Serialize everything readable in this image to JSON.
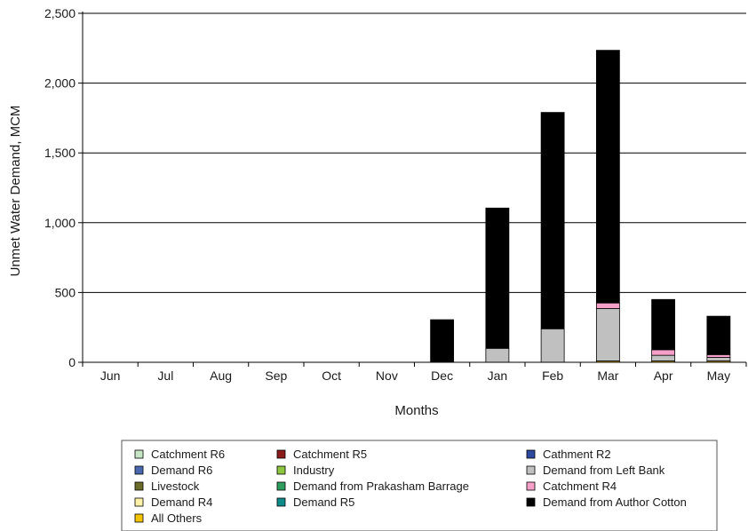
{
  "chart_data": {
    "type": "bar",
    "stacked": true,
    "title": "",
    "xlabel": "Months",
    "ylabel": "Unmet Water Demand, MCM",
    "ylim": [
      0,
      2500
    ],
    "yticks": [
      0,
      500,
      1000,
      1500,
      2000,
      2500
    ],
    "ytick_labels": [
      "0",
      "500",
      "1,000",
      "1,500",
      "2,000",
      "2,500"
    ],
    "grid": true,
    "legend_position": "bottom",
    "categories": [
      "Jun",
      "Jul",
      "Aug",
      "Sep",
      "Oct",
      "Nov",
      "Dec",
      "Jan",
      "Feb",
      "Mar",
      "Apr",
      "May"
    ],
    "series": [
      {
        "name": "Catchment R6",
        "color": "#c6e6c6",
        "values": [
          0,
          0,
          0,
          0,
          0,
          0,
          0,
          0,
          0,
          0,
          0,
          0
        ]
      },
      {
        "name": "Catchment R5",
        "color": "#8b1a1a",
        "values": [
          0,
          0,
          0,
          0,
          0,
          0,
          0,
          0,
          0,
          0,
          0,
          0
        ]
      },
      {
        "name": "Cathment R2",
        "color": "#2e4a9e",
        "values": [
          0,
          0,
          0,
          0,
          0,
          0,
          0,
          0,
          0,
          0,
          0,
          0
        ]
      },
      {
        "name": "Demand R6",
        "color": "#4a67b0",
        "values": [
          0,
          0,
          0,
          0,
          0,
          0,
          0,
          0,
          0,
          0,
          0,
          0
        ]
      },
      {
        "name": "Industry",
        "color": "#8dc63f",
        "values": [
          0,
          0,
          0,
          0,
          0,
          0,
          0,
          0,
          0,
          0,
          0,
          0
        ]
      },
      {
        "name": "Livestock",
        "color": "#6b6b2a",
        "values": [
          0,
          0,
          0,
          0,
          0,
          0,
          0,
          0,
          0,
          0,
          0,
          0
        ]
      },
      {
        "name": "Demand from Prakasham Barrage",
        "color": "#2e9e5e",
        "values": [
          0,
          0,
          0,
          0,
          0,
          0,
          0,
          0,
          0,
          0,
          0,
          0
        ]
      },
      {
        "name": "Demand R4",
        "color": "#fff2a8",
        "values": [
          0,
          0,
          0,
          0,
          0,
          0,
          0,
          0,
          0,
          0,
          0,
          0
        ]
      },
      {
        "name": "Demand R5",
        "color": "#0f8a8a",
        "values": [
          0,
          0,
          0,
          0,
          0,
          0,
          0,
          0,
          0,
          0,
          0,
          0
        ]
      },
      {
        "name": "All Others",
        "color": "#f5c400",
        "values": [
          0,
          0,
          0,
          0,
          0,
          0,
          0,
          0,
          0,
          10,
          10,
          10
        ]
      },
      {
        "name": "Demand from Left Bank",
        "color": "#c0c0c0",
        "values": [
          0,
          0,
          0,
          0,
          0,
          0,
          0,
          100,
          240,
          375,
          40,
          25
        ]
      },
      {
        "name": "Catchment R4",
        "color": "#f4a0c8",
        "values": [
          0,
          0,
          0,
          0,
          0,
          0,
          0,
          0,
          0,
          40,
          40,
          20
        ]
      },
      {
        "name": "Demand from Author Cotton",
        "color": "#000000",
        "values": [
          0,
          0,
          0,
          0,
          0,
          0,
          305,
          1005,
          1550,
          1810,
          360,
          275
        ]
      }
    ],
    "legend_layout": [
      [
        "Catchment R6",
        "Catchment R5",
        "Cathment R2"
      ],
      [
        "Demand R6",
        "Industry",
        "Demand from Left Bank"
      ],
      [
        "Livestock",
        "Demand from Prakasham Barrage",
        "Catchment R4"
      ],
      [
        "Demand R4",
        "Demand R5",
        "Demand from Author Cotton"
      ],
      [
        "All Others"
      ]
    ]
  }
}
